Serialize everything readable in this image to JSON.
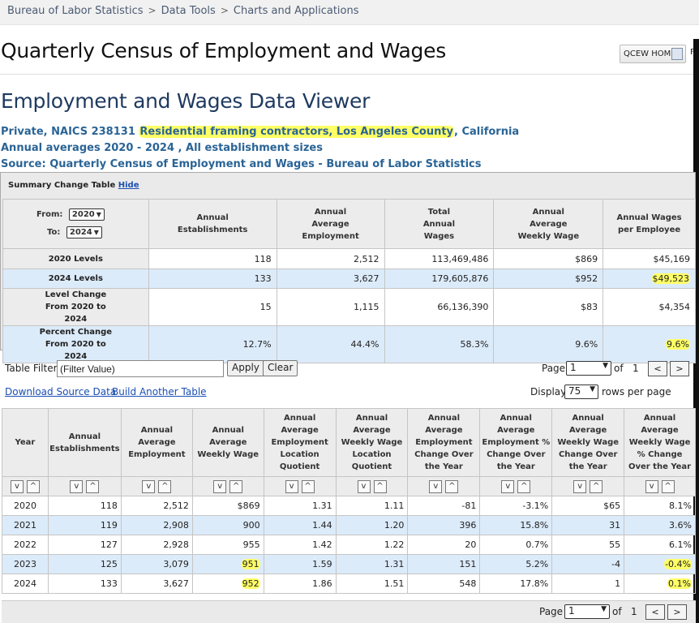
{
  "breadcrumb": [
    "Bureau of Labor Statistics",
    "Data Tools",
    "Charts and Applications"
  ],
  "page_title": "Quarterly Census of Employment and Wages",
  "qcew_home_label": "QCEW HOME",
  "qcew_f": "F",
  "viewer_title": "Employment and Wages Data Viewer",
  "subtitle": {
    "part1": "Private, NAICS 238131 ",
    "highlight": "Residential framing contractors, Los Angeles County",
    "part2": ", California",
    "line2": "Annual averages 2020 - 2024 , All establishment sizes",
    "line3": "Source: Quarterly Census of Employment and Wages - Bureau of Labor Statistics"
  },
  "summary": {
    "heading": "Summary Change Table",
    "hide_label": "Hide",
    "from_label": "From:",
    "to_label": "To:",
    "from_value": "2020",
    "to_value": "2024",
    "columns": [
      "Annual Establishments",
      "Annual Average Employment",
      "Total Annual Wages",
      "Annual Average Weekly Wage",
      "Annual Wages per Employee"
    ],
    "rows": [
      {
        "label": "2020 Levels",
        "values": [
          "118",
          "2,512",
          "113,469,486",
          "$869",
          "$45,169"
        ]
      },
      {
        "label": "2024 Levels",
        "values": [
          "133",
          "3,627",
          "179,605,876",
          "$952",
          "$49,523"
        ]
      },
      {
        "label": "Level Change From 2020 to 2024",
        "values": [
          "15",
          "1,115",
          "66,136,390",
          "$83",
          "$4,354"
        ]
      },
      {
        "label": "Percent Change From 2020 to 2024",
        "values": [
          "12.7%",
          "44.4%",
          "58.3%",
          "9.6%",
          "9.6%"
        ]
      }
    ]
  },
  "filter": {
    "label": "Table Filter:",
    "value": "(Filter Value)",
    "apply_label": "Apply",
    "clear_label": "Clear",
    "page_label": "Page",
    "page_value": "1",
    "of_label": "of",
    "page_total": "1",
    "prev_label": "<",
    "next_label": ">",
    "download_label": "Download Source Data",
    "build_label": "Build Another Table",
    "display_label": "Display",
    "display_value": "75",
    "rows_per_page_label": "rows per page"
  },
  "data_table": {
    "columns": [
      "Year",
      "Annual Establishments",
      "Annual Average Employment",
      "Annual Average Weekly Wage",
      "Annual Average Employment Location Quotient",
      "Annual Average Weekly Wage Location Quotient",
      "Annual Average Employment Change Over the Year",
      "Annual Average Employment % Change Over the Year",
      "Annual Average Weekly Wage Change Over the Year",
      "Annual Average Weekly Wage % Change Over the Year"
    ],
    "sort_down": "v",
    "sort_up": "^",
    "rows": [
      [
        "2020",
        "118",
        "2,512",
        "$869",
        "1.31",
        "1.11",
        "-81",
        "-3.1%",
        "$65",
        "8.1%"
      ],
      [
        "2021",
        "119",
        "2,908",
        "900",
        "1.44",
        "1.20",
        "396",
        "15.8%",
        "31",
        "3.6%"
      ],
      [
        "2022",
        "127",
        "2,928",
        "955",
        "1.42",
        "1.22",
        "20",
        "0.7%",
        "55",
        "6.1%"
      ],
      [
        "2023",
        "125",
        "3,079",
        "951",
        "1.59",
        "1.31",
        "151",
        "5.2%",
        "-4",
        "-0.4%"
      ],
      [
        "2024",
        "133",
        "3,627",
        "952",
        "1.86",
        "1.51",
        "548",
        "17.8%",
        "1",
        "0.1%"
      ]
    ]
  },
  "colors": {
    "highlight": "#ffff66",
    "link": "#1a4fb4",
    "blue_row": "#dcebfa",
    "subtitle": "#2a6496"
  }
}
